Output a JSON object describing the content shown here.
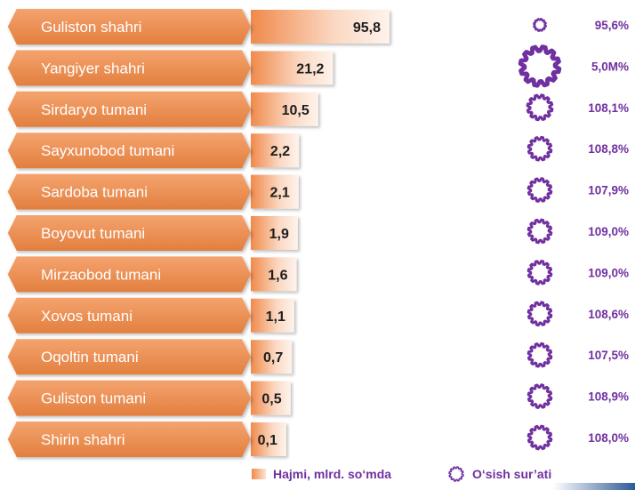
{
  "chart_data": {
    "type": "bar",
    "categories": [
      "Guliston shahri",
      "Yangiyer shahri",
      "Sirdaryo tumani",
      "Sayxunobod tumani",
      "Sardoba tumani",
      "Boyovut tumani",
      "Mirzaobod tumani",
      "Xovos tumani",
      "Oqoltin tumani",
      "Guliston tumani",
      "Shirin shahri"
    ],
    "series": [
      {
        "name": "Hajmi, mlrd. so‘mda",
        "values": [
          95.8,
          21.2,
          10.5,
          2.2,
          2.1,
          1.9,
          1.6,
          1.1,
          0.7,
          0.5,
          0.1
        ],
        "labels": [
          "95,8",
          "21,2",
          "10,5",
          "2,2",
          "2,1",
          "1,9",
          "1,6",
          "1,1",
          "0,7",
          "0,5",
          "0,1"
        ]
      },
      {
        "name": "O‘sish sur’ati",
        "labels": [
          "95,6%",
          "5,0M%",
          "108,1%",
          "108,8%",
          "107,9%",
          "109,0%",
          "109,0%",
          "108,6%",
          "107,5%",
          "108,9%",
          "108,0%"
        ]
      }
    ],
    "legend": "bottom",
    "colors": {
      "bar": "#f08a4b",
      "bar_light": "#fde4d3",
      "gear": "#7030a0",
      "label_bg": "#e8945a",
      "label_dark": "#c96b31"
    }
  }
}
